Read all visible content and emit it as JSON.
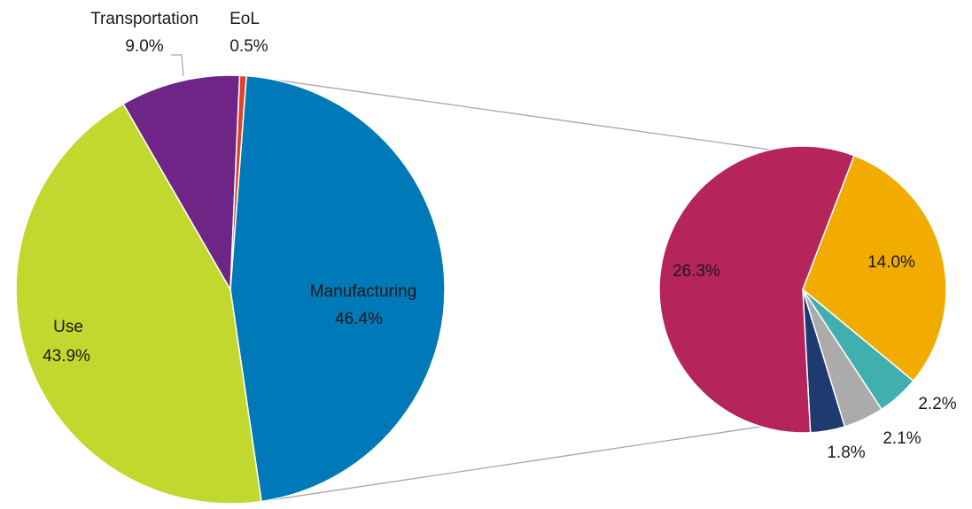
{
  "chart_data": [
    {
      "type": "pie",
      "title": "",
      "slices": [
        {
          "label": "Manufacturing",
          "value": 46.4,
          "value_text": "46.4%",
          "color": "#0079B8"
        },
        {
          "label": "Use",
          "value": 43.9,
          "value_text": "43.9%",
          "color": "#C2D82E"
        },
        {
          "label": "Transportation",
          "value": 9.0,
          "value_text": "9.0%",
          "color": "#6E2585"
        },
        {
          "label": "EoL",
          "value": 0.5,
          "value_text": "0.5%",
          "color": "#D9462A"
        }
      ]
    },
    {
      "type": "pie",
      "title": "",
      "breakdown_of": "Manufacturing",
      "slices": [
        {
          "label": "",
          "value": 14.0,
          "value_text": "14.0%",
          "color": "#F2AC00"
        },
        {
          "label": "",
          "value": 2.2,
          "value_text": "2.2%",
          "color": "#41AFAE"
        },
        {
          "label": "",
          "value": 2.1,
          "value_text": "2.1%",
          "color": "#ABABAB"
        },
        {
          "label": "",
          "value": 1.8,
          "value_text": "1.8%",
          "color": "#1F3A70"
        },
        {
          "label": "",
          "value": 26.3,
          "value_text": "26.3%",
          "color": "#B5245A"
        }
      ]
    }
  ]
}
